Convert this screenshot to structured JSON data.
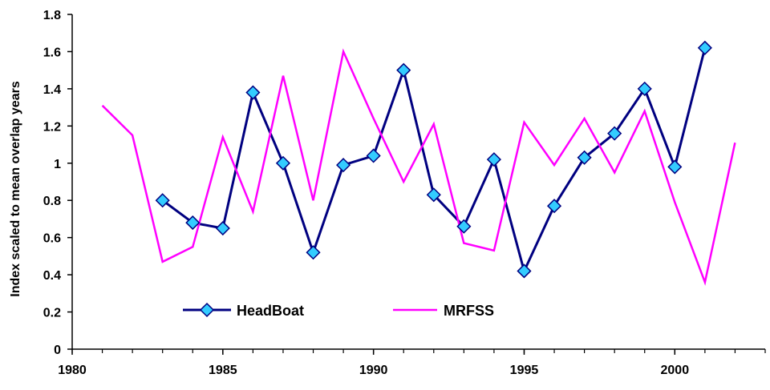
{
  "chart_data": {
    "type": "line",
    "title": "",
    "xlabel": "",
    "ylabel": "Index scaled to mean overlap years",
    "xlim": [
      1980,
      2003
    ],
    "ylim": [
      0,
      1.8
    ],
    "x_ticks": [
      1980,
      1985,
      1990,
      1995,
      2000
    ],
    "y_ticks": [
      0,
      0.2,
      0.4,
      0.6,
      0.8,
      1,
      1.2,
      1.4,
      1.6,
      1.8
    ],
    "x_tick_labels": [
      "1980",
      "1985",
      "1990",
      "1995",
      "2000"
    ],
    "y_tick_labels": [
      "0",
      "0.2",
      "0.4",
      "0.6",
      "0.8",
      "1",
      "1.2",
      "1.4",
      "1.6",
      "1.8"
    ],
    "grid": false,
    "legend_position": "bottom-inside",
    "series": [
      {
        "name": "HeadBoat",
        "color": "#000080",
        "marker": "diamond",
        "marker_color": "#33CCFF",
        "x": [
          1983,
          1984,
          1985,
          1986,
          1987,
          1988,
          1989,
          1990,
          1991,
          1992,
          1993,
          1994,
          1995,
          1996,
          1997,
          1998,
          1999,
          2000,
          2001
        ],
        "y": [
          0.8,
          0.68,
          0.65,
          1.38,
          1.0,
          0.52,
          0.99,
          1.04,
          1.5,
          0.83,
          0.66,
          1.02,
          0.42,
          0.77,
          1.03,
          1.16,
          1.4,
          0.98,
          1.62
        ]
      },
      {
        "name": "MRFSS",
        "color": "#FF00FF",
        "marker": "none",
        "x": [
          1981,
          1982,
          1983,
          1984,
          1985,
          1986,
          1987,
          1988,
          1989,
          1990,
          1991,
          1992,
          1993,
          1994,
          1995,
          1996,
          1997,
          1998,
          1999,
          2000,
          2001,
          2002
        ],
        "y": [
          1.31,
          1.15,
          0.47,
          0.55,
          1.14,
          0.74,
          1.47,
          0.8,
          1.6,
          1.24,
          0.9,
          1.21,
          0.57,
          0.53,
          1.22,
          0.99,
          1.24,
          0.95,
          1.28,
          0.79,
          0.36,
          1.11
        ]
      }
    ]
  }
}
